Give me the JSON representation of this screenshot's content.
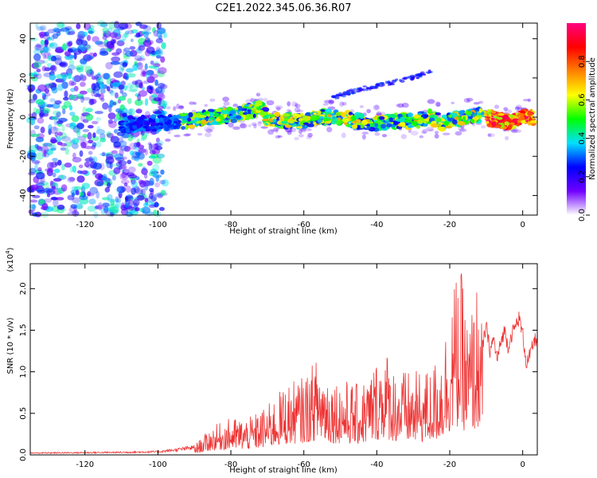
{
  "title": "C2E1.2022.345.06.36.R07",
  "chart_data": [
    {
      "type": "heatmap",
      "xlabel": "Height of straight line (km)",
      "ylabel": "Frequency (Hz)",
      "xlim": [
        -135,
        4
      ],
      "ylim": [
        -50,
        48
      ],
      "xticks": [
        -120,
        -100,
        -80,
        -60,
        -40,
        -20,
        0
      ],
      "yticks": [
        -40,
        -20,
        0,
        20,
        40
      ],
      "colorbar": {
        "label": "Normalized spectral amplitude",
        "range": [
          0,
          1
        ],
        "ticks": [
          "0.0",
          "0.2",
          "0.4",
          "0.6",
          "0.8"
        ],
        "ticks_values": [
          0,
          0.2,
          0.4,
          0.6,
          0.8
        ],
        "colormap": [
          "#ffffff",
          "#7000ff",
          "#0000ff",
          "#00e0ff",
          "#00ff00",
          "#ffff00",
          "#ff8000",
          "#ff0000",
          "#ff0080"
        ]
      },
      "ridge": [
        [
          -110,
          -4
        ],
        [
          -100,
          -3
        ],
        [
          -95,
          -3
        ],
        [
          -90,
          -1
        ],
        [
          -85,
          0
        ],
        [
          -80,
          1
        ],
        [
          -75,
          3
        ],
        [
          -72,
          5
        ],
        [
          -70,
          -1
        ],
        [
          -65,
          -2
        ],
        [
          -60,
          -2
        ],
        [
          -55,
          0
        ],
        [
          -50,
          0
        ],
        [
          -45,
          -2
        ],
        [
          -40,
          -3
        ],
        [
          -35,
          -2
        ],
        [
          -30,
          -2
        ],
        [
          -25,
          0
        ],
        [
          -22,
          -3
        ],
        [
          -18,
          -1
        ],
        [
          -15,
          0
        ],
        [
          -12,
          1
        ],
        [
          -8,
          -1
        ],
        [
          -5,
          -2
        ],
        [
          -2,
          -2
        ],
        [
          0,
          0
        ],
        [
          3,
          0
        ]
      ],
      "upper_branch": [
        [
          -52,
          10
        ],
        [
          -45,
          14
        ],
        [
          -40,
          16
        ],
        [
          -35,
          18
        ],
        [
          -30,
          20
        ],
        [
          -27,
          22
        ],
        [
          -25,
          23
        ]
      ]
    },
    {
      "type": "line",
      "xlabel": "Height of straight line (km)",
      "ylabel": "SNR (10 * v/v)",
      "scale_label": "(x10^4)",
      "scale_base": "(x10",
      "scale_exp": "4",
      "scale_close": ")",
      "xlim": [
        -135,
        4
      ],
      "ylim": [
        0,
        2.3
      ],
      "xticks": [
        -120,
        -100,
        -80,
        -60,
        -40,
        -20,
        0
      ],
      "yticks": [
        "0.0",
        "0.5",
        "1.0",
        "1.5",
        "2.0"
      ],
      "ytick_values": [
        0,
        0.5,
        1.0,
        1.5,
        2.0
      ],
      "color": "#ee3333",
      "envelope": [
        [
          -135,
          0.03
        ],
        [
          -110,
          0.04
        ],
        [
          -100,
          0.05
        ],
        [
          -95,
          0.08
        ],
        [
          -90,
          0.12
        ],
        [
          -85,
          0.35
        ],
        [
          -80,
          0.45
        ],
        [
          -75,
          0.45
        ],
        [
          -70,
          0.6
        ],
        [
          -65,
          0.85
        ],
        [
          -60,
          0.95
        ],
        [
          -56,
          1.2
        ],
        [
          -52,
          0.95
        ],
        [
          -48,
          0.9
        ],
        [
          -45,
          0.85
        ],
        [
          -42,
          1.0
        ],
        [
          -38,
          1.35
        ],
        [
          -35,
          1.05
        ],
        [
          -30,
          1.0
        ],
        [
          -25,
          1.05
        ],
        [
          -22,
          1.35
        ],
        [
          -19,
          2.1
        ],
        [
          -17,
          2.25
        ],
        [
          -15,
          1.6
        ],
        [
          -12,
          2.2
        ],
        [
          -11,
          1.4
        ],
        [
          -8,
          1.55
        ],
        [
          -5,
          1.4
        ],
        [
          -2,
          1.6
        ],
        [
          0,
          1.5
        ],
        [
          4,
          1.4
        ]
      ],
      "tail_points": [
        [
          -11,
          1.3
        ],
        [
          -10,
          1.55
        ],
        [
          -9,
          1.25
        ],
        [
          -8,
          1.4
        ],
        [
          -7,
          1.15
        ],
        [
          -6,
          1.35
        ],
        [
          -5,
          1.5
        ],
        [
          -4,
          1.3
        ],
        [
          -3,
          1.45
        ],
        [
          -2,
          1.55
        ],
        [
          -1,
          1.65
        ],
        [
          0,
          1.45
        ],
        [
          1,
          1.1
        ],
        [
          2,
          1.2
        ],
        [
          3,
          1.35
        ],
        [
          4,
          1.42
        ]
      ]
    }
  ]
}
